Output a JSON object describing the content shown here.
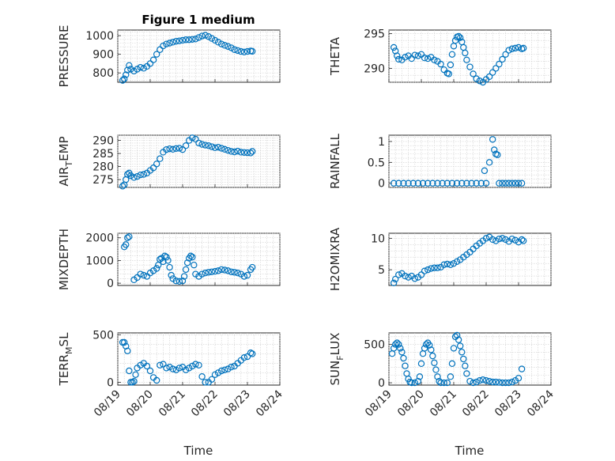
{
  "title": "Figure 1 medium",
  "xlabel": "Time",
  "colors": {
    "marker": "#0072BD",
    "axis": "#262626",
    "grid": "#cfcfcf"
  },
  "chart_data": [
    {
      "type": "scatter",
      "ylabel": "PRESSURE",
      "ylabel_sub": null,
      "yticks": [
        800,
        900,
        1000
      ],
      "ylim": [
        750,
        1030
      ],
      "x": [
        0.15,
        0.2,
        0.25,
        0.3,
        0.35,
        0.4,
        0.5,
        0.6,
        0.7,
        0.8,
        0.9,
        1.0,
        1.1,
        1.2,
        1.3,
        1.4,
        1.5,
        1.6,
        1.7,
        1.8,
        1.9,
        2.0,
        2.1,
        2.2,
        2.3,
        2.4,
        2.5,
        2.6,
        2.7,
        2.8,
        2.9,
        3.0,
        3.1,
        3.2,
        3.3,
        3.4,
        3.5,
        3.6,
        3.7,
        3.8,
        3.9,
        4.0,
        4.1,
        4.15
      ],
      "y": [
        760,
        768,
        790,
        815,
        840,
        820,
        810,
        820,
        830,
        825,
        835,
        850,
        870,
        900,
        925,
        945,
        955,
        960,
        965,
        970,
        972,
        975,
        978,
        978,
        980,
        982,
        990,
        998,
        1002,
        995,
        985,
        975,
        965,
        955,
        948,
        942,
        935,
        925,
        920,
        915,
        912,
        915,
        918,
        916
      ]
    },
    {
      "type": "scatter",
      "ylabel": "THETA",
      "ylabel_sub": null,
      "yticks": [
        290,
        295
      ],
      "ylim": [
        288,
        295.5
      ],
      "x": [
        0.15,
        0.2,
        0.25,
        0.3,
        0.4,
        0.5,
        0.6,
        0.7,
        0.8,
        0.9,
        1.0,
        1.1,
        1.2,
        1.3,
        1.4,
        1.5,
        1.6,
        1.7,
        1.8,
        1.85,
        1.9,
        1.95,
        2.0,
        2.05,
        2.1,
        2.15,
        2.2,
        2.25,
        2.3,
        2.35,
        2.4,
        2.5,
        2.6,
        2.7,
        2.8,
        2.9,
        3.0,
        3.1,
        3.2,
        3.3,
        3.4,
        3.5,
        3.6,
        3.7,
        3.8,
        3.9,
        4.0,
        4.1,
        4.15
      ],
      "y": [
        293,
        292.5,
        291.8,
        291.3,
        291.2,
        291.6,
        291.8,
        291.4,
        291.9,
        291.8,
        292,
        291.5,
        291.4,
        291.6,
        291.2,
        291,
        290.6,
        289.8,
        289.3,
        289.2,
        290.5,
        292,
        293.2,
        294,
        294.5,
        294.6,
        294.4,
        293.8,
        293,
        292.2,
        291.2,
        290.2,
        289.2,
        288.5,
        288.2,
        288,
        288.4,
        288.8,
        289.4,
        290,
        290.6,
        291.3,
        292,
        292.6,
        292.8,
        292.9,
        293,
        292.8,
        292.9
      ]
    },
    {
      "type": "scatter",
      "ylabel": "AIR",
      "ylabel_sub": "T",
      "ylabel_tail": "EMP",
      "yticks": [
        275,
        280,
        285,
        290
      ],
      "ylim": [
        272,
        292
      ],
      "x": [
        0.15,
        0.2,
        0.25,
        0.3,
        0.35,
        0.4,
        0.5,
        0.6,
        0.7,
        0.8,
        0.9,
        1.0,
        1.1,
        1.2,
        1.3,
        1.4,
        1.5,
        1.6,
        1.7,
        1.8,
        1.9,
        2.0,
        2.1,
        2.2,
        2.3,
        2.4,
        2.5,
        2.6,
        2.7,
        2.8,
        2.9,
        3.0,
        3.1,
        3.2,
        3.3,
        3.4,
        3.5,
        3.6,
        3.7,
        3.8,
        3.9,
        4.0,
        4.1,
        4.15
      ],
      "y": [
        272.5,
        273,
        275,
        277,
        277.5,
        276.5,
        275.8,
        276.2,
        276.8,
        277,
        277.5,
        278.5,
        279.5,
        281,
        283,
        285.5,
        286.5,
        286.8,
        286.6,
        286.9,
        287,
        286.5,
        288,
        290,
        291,
        290.5,
        289,
        288.5,
        288.2,
        288,
        287.6,
        287.2,
        287.4,
        287,
        286.6,
        286.2,
        285.8,
        285.6,
        285.9,
        285.5,
        285.4,
        285.3,
        285.2,
        285.8
      ]
    },
    {
      "type": "scatter",
      "ylabel": "RAINFALL",
      "ylabel_sub": null,
      "yticks": [
        0,
        0.5,
        1
      ],
      "ylim": [
        -0.1,
        1.15
      ],
      "x": [
        0.15,
        0.3,
        0.45,
        0.6,
        0.75,
        0.9,
        1.05,
        1.2,
        1.35,
        1.5,
        1.65,
        1.8,
        1.95,
        2.1,
        2.25,
        2.4,
        2.55,
        2.7,
        2.85,
        2.95,
        3.0,
        3.1,
        3.2,
        3.25,
        3.3,
        3.35,
        3.4,
        3.5,
        3.6,
        3.7,
        3.8,
        3.9,
        4.0,
        4.1
      ],
      "y": [
        0,
        0,
        0,
        0,
        0,
        0,
        0,
        0,
        0,
        0,
        0,
        0,
        0,
        0,
        0,
        0,
        0,
        0,
        0,
        0.3,
        0,
        0.5,
        1.05,
        0.8,
        0.7,
        0.68,
        0,
        0,
        0,
        0,
        0,
        0,
        0,
        0
      ]
    },
    {
      "type": "scatter",
      "ylabel": "MIXDEPTH",
      "ylabel_sub": null,
      "yticks": [
        0,
        1000,
        2000
      ],
      "ylim": [
        -100,
        2200
      ],
      "x": [
        0.2,
        0.25,
        0.3,
        0.35,
        0.5,
        0.6,
        0.7,
        0.8,
        0.9,
        1.0,
        1.1,
        1.2,
        1.25,
        1.3,
        1.35,
        1.4,
        1.45,
        1.5,
        1.55,
        1.6,
        1.65,
        1.7,
        1.8,
        1.9,
        2.0,
        2.05,
        2.1,
        2.15,
        2.2,
        2.25,
        2.3,
        2.35,
        2.4,
        2.5,
        2.6,
        2.7,
        2.8,
        2.9,
        3.0,
        3.1,
        3.2,
        3.3,
        3.4,
        3.5,
        3.6,
        3.7,
        3.8,
        3.9,
        4.0,
        4.1,
        4.15
      ],
      "y": [
        1600,
        1700,
        2000,
        2050,
        150,
        250,
        400,
        350,
        300,
        450,
        550,
        650,
        800,
        1050,
        1100,
        950,
        1200,
        1150,
        1000,
        700,
        350,
        200,
        100,
        80,
        100,
        300,
        600,
        900,
        1100,
        1200,
        1150,
        800,
        400,
        300,
        400,
        450,
        480,
        500,
        520,
        550,
        600,
        580,
        550,
        500,
        480,
        450,
        400,
        300,
        350,
        600,
        700
      ]
    },
    {
      "type": "scatter",
      "ylabel": "H2OMIXRA",
      "ylabel_sub": null,
      "yticks": [
        5,
        10
      ],
      "ylim": [
        2.5,
        10.8
      ],
      "x": [
        0.15,
        0.2,
        0.3,
        0.4,
        0.5,
        0.6,
        0.7,
        0.8,
        0.9,
        1.0,
        1.1,
        1.2,
        1.3,
        1.4,
        1.5,
        1.6,
        1.7,
        1.8,
        1.9,
        2.0,
        2.1,
        2.2,
        2.3,
        2.4,
        2.5,
        2.6,
        2.7,
        2.8,
        2.9,
        3.0,
        3.1,
        3.2,
        3.3,
        3.4,
        3.5,
        3.6,
        3.7,
        3.8,
        3.9,
        4.0,
        4.1,
        4.15
      ],
      "y": [
        2.9,
        3.5,
        4.2,
        4.4,
        4.0,
        3.8,
        4.0,
        3.6,
        3.8,
        4.2,
        4.8,
        5.0,
        5.2,
        5.3,
        5.3,
        5.4,
        5.8,
        5.9,
        5.8,
        6.0,
        6.3,
        6.6,
        7.0,
        7.4,
        7.8,
        8.3,
        8.8,
        9.2,
        9.6,
        10.0,
        10.2,
        9.8,
        9.6,
        9.9,
        10.0,
        9.8,
        9.5,
        9.9,
        9.7,
        9.4,
        9.8,
        9.6
      ]
    },
    {
      "type": "scatter",
      "ylabel": "TERR",
      "ylabel_sub": "M",
      "ylabel_tail": "SL",
      "yticks": [
        0,
        500
      ],
      "ylim": [
        -30,
        520
      ],
      "x": [
        0.15,
        0.2,
        0.25,
        0.3,
        0.35,
        0.4,
        0.45,
        0.5,
        0.55,
        0.6,
        0.7,
        0.8,
        0.9,
        1.0,
        1.1,
        1.2,
        1.3,
        1.4,
        1.5,
        1.6,
        1.7,
        1.8,
        1.9,
        2.0,
        2.1,
        2.2,
        2.3,
        2.4,
        2.5,
        2.6,
        2.7,
        2.8,
        2.9,
        3.0,
        3.1,
        3.2,
        3.3,
        3.4,
        3.5,
        3.6,
        3.7,
        3.8,
        3.9,
        4.0,
        4.1,
        4.15
      ],
      "y": [
        420,
        420,
        380,
        330,
        120,
        0,
        0,
        10,
        80,
        150,
        180,
        200,
        170,
        120,
        50,
        20,
        180,
        190,
        150,
        160,
        140,
        130,
        150,
        160,
        130,
        150,
        170,
        190,
        180,
        60,
        0,
        0,
        30,
        80,
        100,
        120,
        130,
        140,
        160,
        170,
        200,
        230,
        260,
        270,
        310,
        300
      ]
    },
    {
      "type": "scatter",
      "ylabel": "SUN",
      "ylabel_sub": "F",
      "ylabel_tail": "LUX",
      "yticks": [
        0,
        500
      ],
      "ylim": [
        -30,
        650
      ],
      "x": [
        0.1,
        0.15,
        0.2,
        0.25,
        0.3,
        0.35,
        0.4,
        0.45,
        0.5,
        0.55,
        0.6,
        0.65,
        0.7,
        0.8,
        0.9,
        0.95,
        1.0,
        1.05,
        1.1,
        1.15,
        1.2,
        1.25,
        1.3,
        1.35,
        1.4,
        1.45,
        1.5,
        1.55,
        1.6,
        1.7,
        1.8,
        1.9,
        1.95,
        2.0,
        2.05,
        2.1,
        2.15,
        2.2,
        2.25,
        2.3,
        2.35,
        2.4,
        2.5,
        2.6,
        2.7,
        2.8,
        2.9,
        3.0,
        3.1,
        3.2,
        3.3,
        3.4,
        3.5,
        3.6,
        3.7,
        3.8,
        3.9,
        4.0,
        4.1
      ],
      "y": [
        380,
        450,
        500,
        520,
        500,
        450,
        400,
        320,
        220,
        120,
        50,
        10,
        0,
        0,
        20,
        80,
        250,
        380,
        450,
        500,
        520,
        490,
        430,
        350,
        260,
        170,
        80,
        20,
        0,
        0,
        0,
        80,
        250,
        450,
        600,
        620,
        560,
        480,
        400,
        310,
        220,
        120,
        20,
        0,
        10,
        30,
        40,
        30,
        20,
        10,
        10,
        5,
        0,
        0,
        0,
        10,
        30,
        60,
        180
      ]
    }
  ],
  "xaxis": {
    "ticks": [
      0,
      1,
      2,
      3,
      4,
      5
    ],
    "ticklabels": [
      "08/19",
      "08/20",
      "08/21",
      "08/22",
      "08/23",
      "08/24"
    ],
    "xlim": [
      0,
      5
    ]
  }
}
